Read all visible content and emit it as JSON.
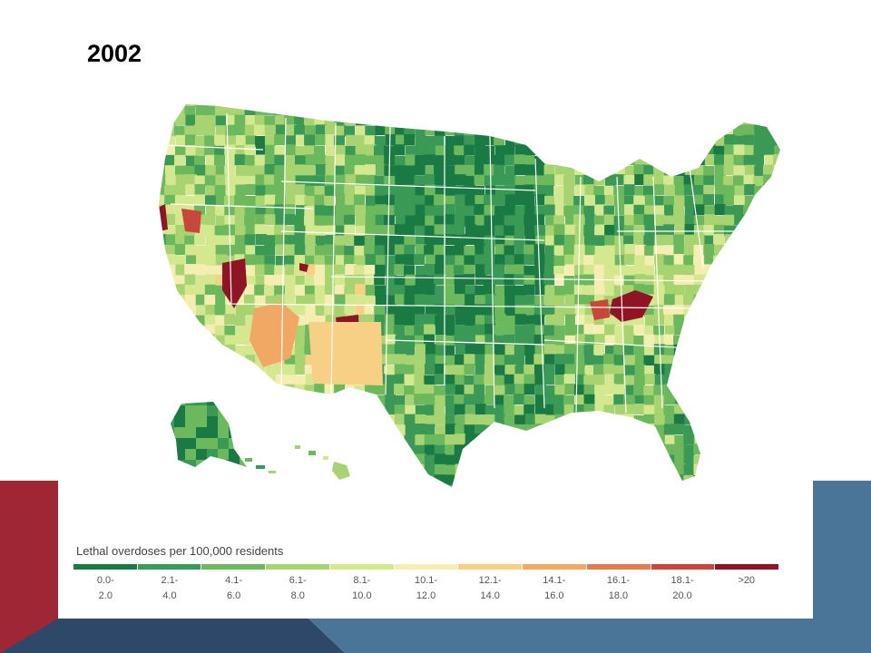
{
  "slide": {
    "title": "2002"
  },
  "map": {
    "legend_title": "Lethal overdoses per 100,000 residents",
    "legend": [
      {
        "low": "0.0-",
        "high": "2.0",
        "color": "#1a7a43"
      },
      {
        "low": "2.1-",
        "high": "4.0",
        "color": "#3a9a55"
      },
      {
        "low": "4.1-",
        "high": "6.0",
        "color": "#6cb85d"
      },
      {
        "low": "6.1-",
        "high": "8.0",
        "color": "#a7d370"
      },
      {
        "low": "8.1-",
        "high": "10.0",
        "color": "#d4e88f"
      },
      {
        "low": "10.1-",
        "high": "12.0",
        "color": "#f4efb0"
      },
      {
        "low": "12.1-",
        "high": "14.0",
        "color": "#f7cf85"
      },
      {
        "low": "14.1-",
        "high": "16.0",
        "color": "#f2a865"
      },
      {
        "low": "16.1-",
        "high": "18.0",
        "color": "#e27b4d"
      },
      {
        "low": "18.1-",
        "high": "20.0",
        "color": "#c9473a"
      },
      {
        "low": ">20",
        "high": "",
        "color": "#8f1425"
      }
    ]
  },
  "colors": {
    "accent_red": "#9f2735",
    "accent_blue": "#4a7599",
    "accent_navy": "#2d4868",
    "state_border": "#ffffff"
  }
}
